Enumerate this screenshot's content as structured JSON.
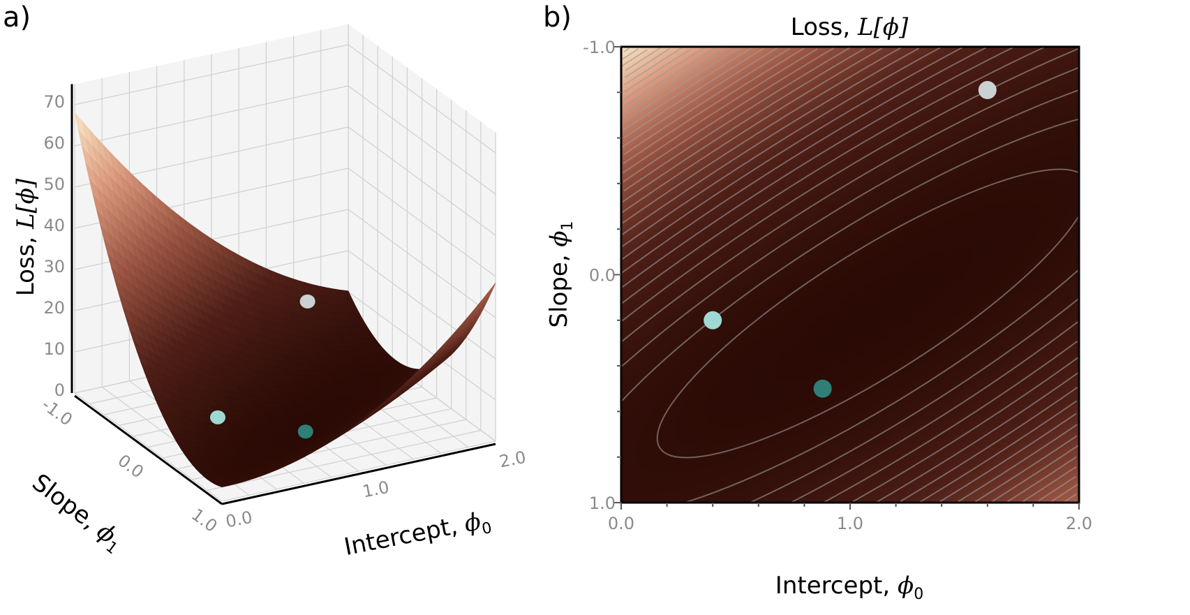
{
  "panel_labels": {
    "a": "a)",
    "b": "b)"
  },
  "chart_data": [
    {
      "type": "surface",
      "panel": "a",
      "zlabel": {
        "text": "Loss, ",
        "math": "L[ϕ]"
      },
      "xlabel": {
        "text": "Intercept, ",
        "sym": "ϕ",
        "sub": "0"
      },
      "ylabel": {
        "text": "Slope, ",
        "sym": "ϕ",
        "sub": "1"
      },
      "xlim": [
        0,
        2
      ],
      "ylim": [
        -1,
        1
      ],
      "zlim": [
        0,
        75
      ],
      "xticks": [
        "0.0",
        "1.0",
        "2.0"
      ],
      "yticks": [
        "-1.0",
        "0.0",
        "1.0"
      ],
      "zticks": [
        "0",
        "10",
        "20",
        "30",
        "40",
        "50",
        "60",
        "70"
      ],
      "grid": true,
      "points": [
        {
          "phi0": 1.6,
          "phi1": -0.81,
          "color": "#c9d1d3"
        },
        {
          "phi0": 0.4,
          "phi1": 0.2,
          "color": "#9fd9d4"
        },
        {
          "phi0": 0.88,
          "phi1": 0.5,
          "color": "#2e7f75"
        }
      ]
    },
    {
      "type": "heatmap",
      "panel": "b",
      "title": {
        "text": "Loss, ",
        "math": "L[ϕ]"
      },
      "xlabel": {
        "text": "Intercept, ",
        "sym": "ϕ",
        "sub": "0"
      },
      "ylabel": {
        "text": "Slope, ",
        "sym": "ϕ",
        "sub": "1"
      },
      "xlim": [
        0,
        2
      ],
      "ylim": [
        -1,
        1
      ],
      "y_inverted": true,
      "xticks": [
        "0.0",
        "1.0",
        "2.0"
      ],
      "yticks": [
        "-1.0",
        "0.0",
        "1.0"
      ],
      "contours": true,
      "points": [
        {
          "phi0": 1.6,
          "phi1": -0.81,
          "color": "#c9d1d3"
        },
        {
          "phi0": 0.4,
          "phi1": 0.2,
          "color": "#9fd9d4"
        },
        {
          "phi0": 0.88,
          "phi1": 0.5,
          "color": "#2e7f75"
        }
      ]
    }
  ],
  "colormap": [
    "#2a0a05",
    "#4e1f17",
    "#9a5442",
    "#dc9c80",
    "#fdf0d0"
  ],
  "colors": {
    "pane": "#f4f4f4",
    "grid": "#d0d0d0",
    "contour": "#a09a98",
    "tick_text": "#8a8a8a"
  }
}
